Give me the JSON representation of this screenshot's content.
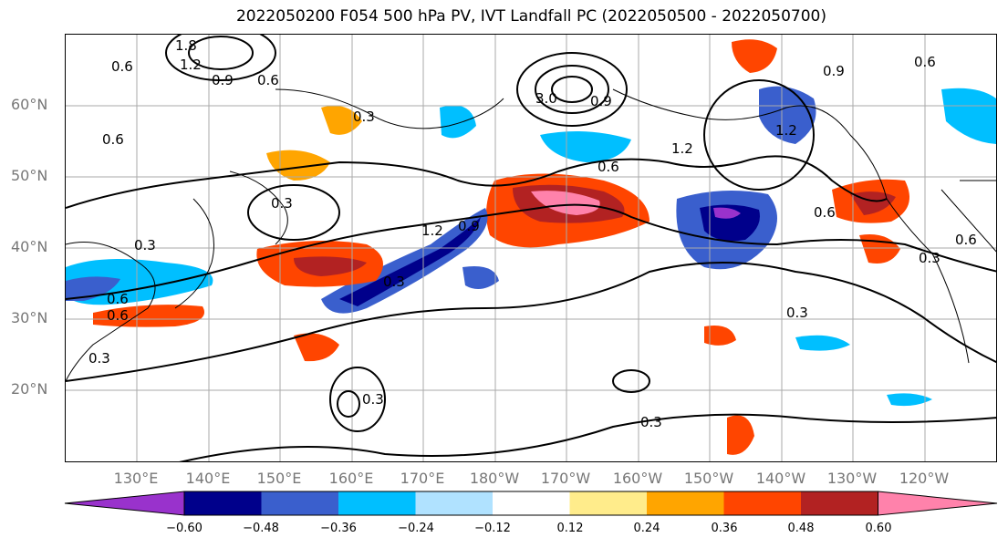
{
  "title": "2022050200 F054 500 hPa PV, IVT Landfall PC (2022050500 - 2022050700)",
  "lat_labels": [
    "60°N",
    "50°N",
    "40°N",
    "30°N",
    "20°N"
  ],
  "lon_labels": [
    "130°E",
    "140°E",
    "150°E",
    "160°E",
    "170°E",
    "180°W",
    "170°W",
    "160°W",
    "150°W",
    "140°W",
    "130°W",
    "120°W"
  ],
  "contour_labels": [
    "1.8",
    "1.2",
    "0.6",
    "0.9",
    "0.6",
    "0.3",
    "3.0",
    "0.6",
    "1.2",
    "1.2",
    "0.9",
    "0.6",
    "0.6",
    "1.2",
    "0.9",
    "0.3",
    "0.3",
    "0.6",
    "0.6",
    "0.3",
    "0.3",
    "0.3",
    "0.3",
    "0.3",
    "0.6",
    "0.3",
    "0.9",
    "0.6"
  ],
  "colorbar": {
    "ticks": [
      "−0.60",
      "−0.48",
      "−0.36",
      "−0.24",
      "−0.12",
      "0.12",
      "0.24",
      "0.36",
      "0.48",
      "0.60"
    ],
    "colors": [
      "#9932CC",
      "#00008B",
      "#3A5FCD",
      "#00BFFF",
      "#B0E2FF",
      "#FFFFFF",
      "#FFEC8B",
      "#FFA500",
      "#FF4500",
      "#B22222",
      "#FF82AB"
    ]
  }
}
